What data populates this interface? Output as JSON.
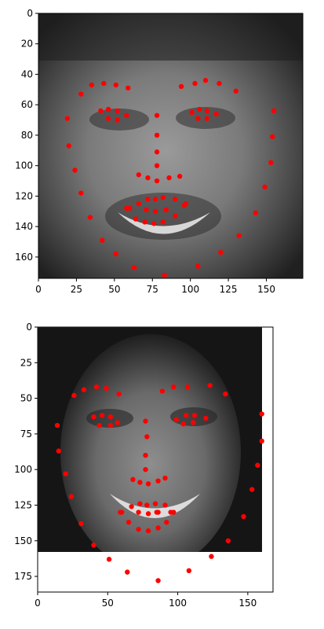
{
  "chart_data": [
    {
      "type": "scatter",
      "image_description": "grayscale portrait face, lit from left, man with short hair, smiling",
      "xlim": [
        0,
        174
      ],
      "ylim": [
        174,
        0
      ],
      "x_ticks": [
        0,
        25,
        50,
        75,
        100,
        125,
        150
      ],
      "y_ticks": [
        0,
        20,
        40,
        60,
        80,
        100,
        120,
        140,
        160
      ],
      "marker_color": "#ff0000",
      "points": [
        [
          19,
          69
        ],
        [
          20,
          87
        ],
        [
          24,
          103
        ],
        [
          28,
          118
        ],
        [
          34,
          134
        ],
        [
          42,
          149
        ],
        [
          51,
          158
        ],
        [
          63,
          167
        ],
        [
          83,
          172
        ],
        [
          105,
          166
        ],
        [
          120,
          157
        ],
        [
          132,
          146
        ],
        [
          143,
          131
        ],
        [
          149,
          114
        ],
        [
          153,
          98
        ],
        [
          154,
          81
        ],
        [
          155,
          64
        ],
        [
          28,
          53
        ],
        [
          35,
          47
        ],
        [
          43,
          46
        ],
        [
          51,
          47
        ],
        [
          59,
          49
        ],
        [
          94,
          48
        ],
        [
          103,
          46
        ],
        [
          110,
          44
        ],
        [
          119,
          46
        ],
        [
          130,
          51
        ],
        [
          78,
          67
        ],
        [
          78,
          80
        ],
        [
          78,
          91
        ],
        [
          78,
          100
        ],
        [
          66,
          106
        ],
        [
          72,
          108
        ],
        [
          78,
          110
        ],
        [
          86,
          108
        ],
        [
          93,
          107
        ],
        [
          41,
          64
        ],
        [
          46,
          63
        ],
        [
          52,
          64
        ],
        [
          58,
          67
        ],
        [
          52,
          70
        ],
        [
          46,
          69
        ],
        [
          101,
          65
        ],
        [
          106,
          63
        ],
        [
          111,
          64
        ],
        [
          117,
          66
        ],
        [
          111,
          69
        ],
        [
          105,
          69
        ],
        [
          58,
          128
        ],
        [
          66,
          125
        ],
        [
          72,
          122
        ],
        [
          77,
          122
        ],
        [
          82,
          121
        ],
        [
          90,
          122
        ],
        [
          97,
          125
        ],
        [
          90,
          133
        ],
        [
          82,
          137
        ],
        [
          76,
          138
        ],
        [
          70,
          137
        ],
        [
          64,
          135
        ],
        [
          60,
          128
        ],
        [
          71,
          129
        ],
        [
          77,
          130
        ],
        [
          84,
          129
        ],
        [
          96,
          126
        ],
        [
          84,
          129
        ]
      ]
    },
    {
      "type": "scatter",
      "image_description": "grayscale portrait face of a smiling woman with dark hair",
      "xlim": [
        0,
        168
      ],
      "ylim": [
        186,
        0
      ],
      "image_extent_y": [
        0,
        160
      ],
      "x_ticks": [
        0,
        50,
        100,
        150
      ],
      "y_ticks": [
        0,
        25,
        50,
        75,
        100,
        125,
        150,
        175
      ],
      "marker_color": "#ff0000",
      "points": [
        [
          14,
          69
        ],
        [
          15,
          87
        ],
        [
          20,
          103
        ],
        [
          24,
          119
        ],
        [
          31,
          138
        ],
        [
          40,
          153
        ],
        [
          51,
          163
        ],
        [
          64,
          172
        ],
        [
          86,
          178
        ],
        [
          108,
          171
        ],
        [
          124,
          161
        ],
        [
          136,
          150
        ],
        [
          147,
          133
        ],
        [
          153,
          114
        ],
        [
          157,
          97
        ],
        [
          160,
          80
        ],
        [
          160,
          61
        ],
        [
          26,
          48
        ],
        [
          33,
          44
        ],
        [
          42,
          42
        ],
        [
          49,
          43
        ],
        [
          58,
          47
        ],
        [
          89,
          45
        ],
        [
          97,
          42
        ],
        [
          107,
          42
        ],
        [
          123,
          41
        ],
        [
          134,
          47
        ],
        [
          77,
          66
        ],
        [
          78,
          77
        ],
        [
          77,
          90
        ],
        [
          77,
          100
        ],
        [
          68,
          107
        ],
        [
          73,
          109
        ],
        [
          79,
          110
        ],
        [
          86,
          108
        ],
        [
          91,
          106
        ],
        [
          40,
          63
        ],
        [
          46,
          62
        ],
        [
          52,
          63
        ],
        [
          57,
          67
        ],
        [
          52,
          69
        ],
        [
          44,
          69
        ],
        [
          99,
          65
        ],
        [
          106,
          62
        ],
        [
          112,
          62
        ],
        [
          120,
          64
        ],
        [
          111,
          67
        ],
        [
          104,
          68
        ],
        [
          59,
          130
        ],
        [
          67,
          126
        ],
        [
          73,
          124
        ],
        [
          78,
          125
        ],
        [
          84,
          124
        ],
        [
          91,
          125
        ],
        [
          97,
          130
        ],
        [
          92,
          137
        ],
        [
          86,
          141
        ],
        [
          79,
          143
        ],
        [
          72,
          142
        ],
        [
          65,
          137
        ],
        [
          60,
          130
        ],
        [
          72,
          130
        ],
        [
          79,
          131
        ],
        [
          86,
          130
        ],
        [
          95,
          130
        ],
        [
          85,
          130
        ]
      ]
    }
  ]
}
